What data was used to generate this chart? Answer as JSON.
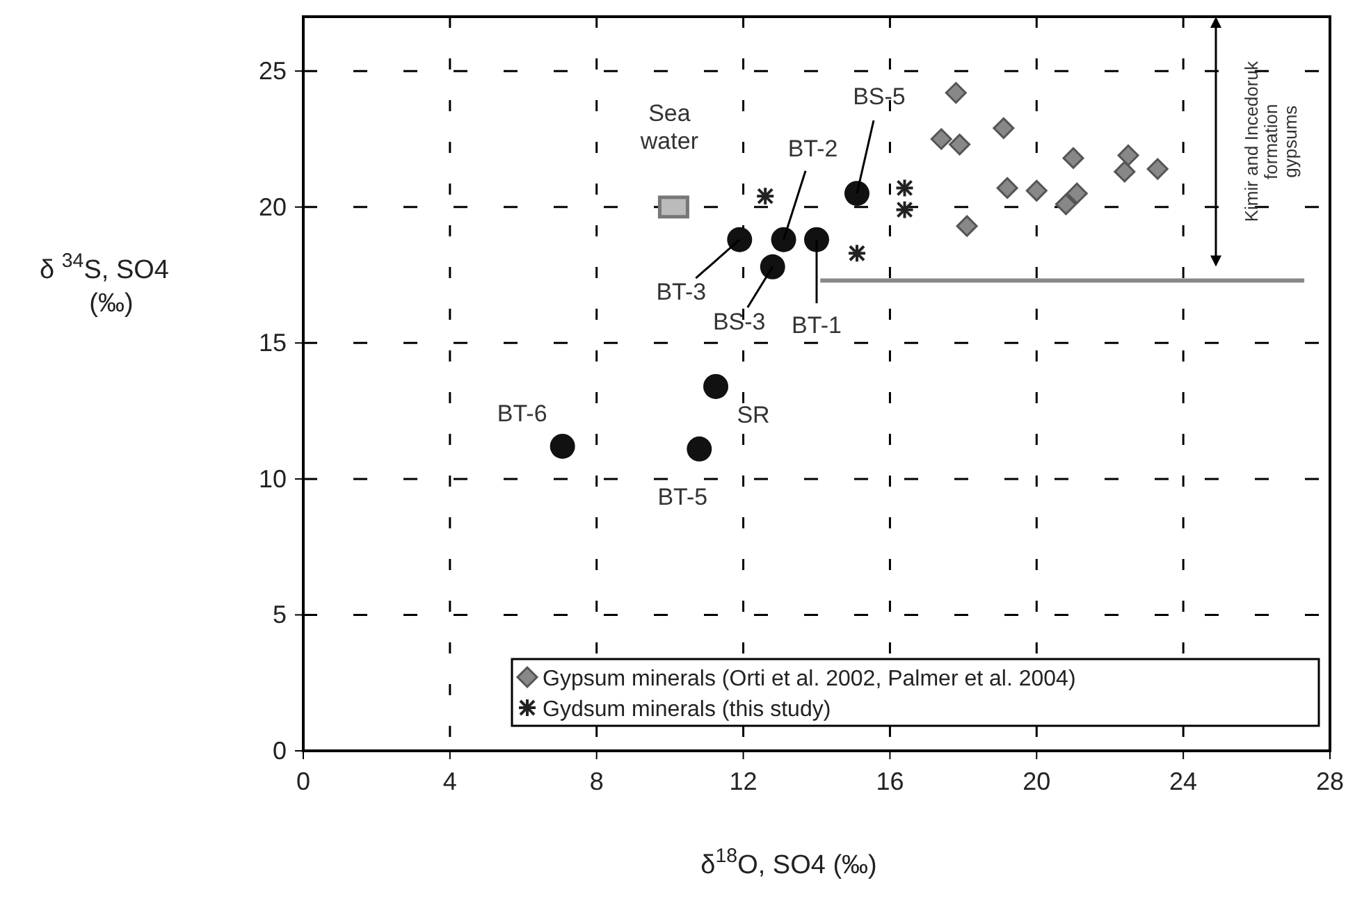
{
  "chart_data": {
    "type": "scatter",
    "xlabel": "δ$^{18}$O, SO4 (‰)",
    "ylabel": "δ $^{34}$S, SO4\n(‰)",
    "xlim": [
      0,
      28
    ],
    "ylim": [
      0,
      27
    ],
    "xticks": [
      0,
      4,
      8,
      12,
      16,
      20,
      24,
      28
    ],
    "yticks": [
      0,
      5,
      10,
      15,
      20,
      25
    ],
    "grid": true,
    "legend": "bottom right",
    "series": [
      {
        "marker": "circle",
        "color": "#111111",
        "x": [
          7.07,
          10.8,
          11.25,
          11.9,
          12.8,
          13.1,
          14.0,
          15.1
        ],
        "values": [
          11.2,
          11.1,
          13.4,
          18.8,
          17.8,
          18.8,
          18.8,
          20.5
        ]
      },
      {
        "marker": "square",
        "color": "#777777",
        "x": [
          10.1
        ],
        "values": [
          20.0
        ]
      },
      {
        "name": "Gypsum minerals (Orti et al. 2002, Palmer et al. 2004)",
        "marker": "diamond",
        "color": "#888888",
        "x": [
          17.8,
          17.4,
          17.9,
          19.1,
          18.1,
          19.2,
          20.0,
          20.8,
          21.1,
          21.0,
          22.4,
          22.5,
          23.3
        ],
        "values": [
          24.2,
          22.5,
          22.3,
          22.9,
          19.3,
          20.7,
          20.6,
          20.1,
          20.5,
          21.8,
          21.3,
          21.9,
          21.4
        ]
      },
      {
        "name": "Gydsum minerals (this study)",
        "marker": "cross",
        "color": "#222222",
        "x": [
          12.6,
          16.4,
          16.4,
          15.1
        ],
        "values": [
          20.4,
          20.7,
          19.9,
          18.3
        ]
      },
      {
        "type": "line",
        "color": "#888888",
        "x": [
          14.1,
          27.3
        ],
        "values": [
          17.3,
          17.3
        ]
      }
    ],
    "annotations": [
      {
        "text": "BT-6",
        "x": 7.07,
        "y": 11.2
      },
      {
        "text": "BT-5",
        "x": 10.8,
        "y": 11.1
      },
      {
        "text": "SR",
        "x": 11.25,
        "y": 13.4
      },
      {
        "text": "BT-3",
        "x": 11.9,
        "y": 18.8
      },
      {
        "text": "BS-3",
        "x": 12.8,
        "y": 17.8
      },
      {
        "text": "BT-2",
        "x": 13.1,
        "y": 18.8
      },
      {
        "text": "BT-1",
        "x": 14.0,
        "y": 18.8
      },
      {
        "text": "BS-5",
        "x": 15.1,
        "y": 20.5
      },
      {
        "text": "Sea\nwater",
        "x": 10.1,
        "y": 20.0
      },
      "Kimir and Incedoruk\nformation\ngypsums"
    ]
  }
}
